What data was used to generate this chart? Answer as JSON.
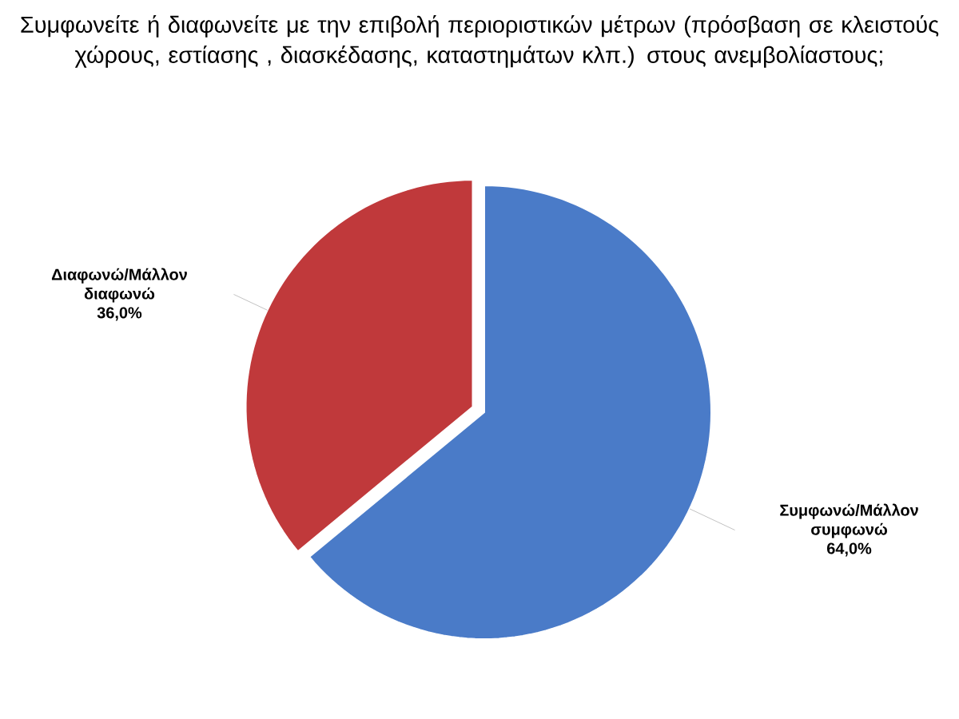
{
  "chart_data": {
    "type": "pie",
    "title": "Συμφωνείτε ή διαφωνείτε με την επιβολή περιοριστικών μέτρων (πρόσβαση σε κλειστούς χώρους, εστίασης , διασκέδασης, καταστημάτων κλπ.) στους ανεμβολίαστους;",
    "categories": [
      "Συμφωνώ/Μάλλον συμφωνώ",
      "Διαφωνώ/Μάλλον διαφωνώ"
    ],
    "values": [
      64,
      36
    ],
    "value_labels": [
      "64,0%",
      "36,0%"
    ],
    "colors": [
      "#4a7bc8",
      "#c0393b"
    ]
  }
}
